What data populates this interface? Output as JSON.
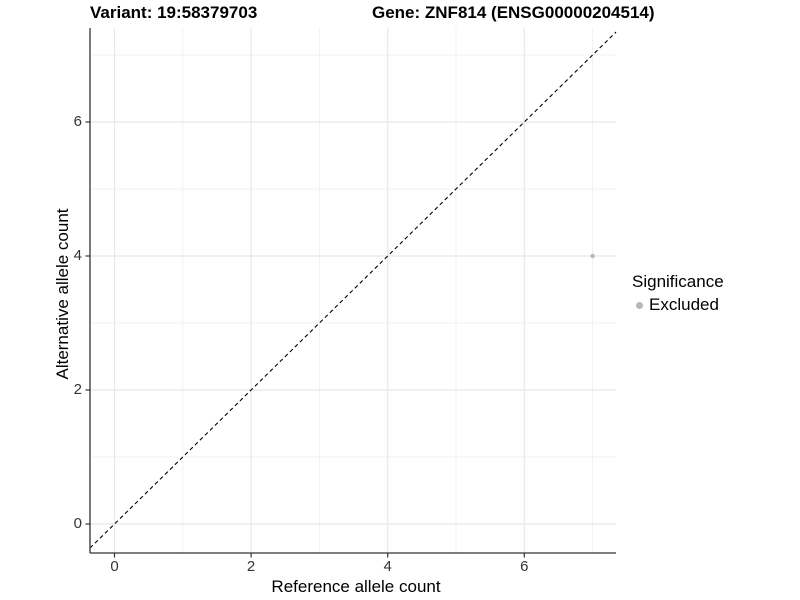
{
  "chart_data": {
    "type": "scatter",
    "title_left": "Variant: 19:58379703",
    "title_right": "Gene: ZNF814 (ENSG00000204514)",
    "xlabel": "Reference allele count",
    "ylabel": "Alternative allele count",
    "xlim": [
      -0.35,
      7.35
    ],
    "ylim": [
      -0.35,
      7.35
    ],
    "xticks": [
      0,
      2,
      4,
      6
    ],
    "yticks": [
      0,
      2,
      4,
      6
    ],
    "minor_gridlines_x": [
      1,
      3,
      5,
      7
    ],
    "minor_gridlines_y": [
      1,
      3,
      5,
      7
    ],
    "grid": true,
    "points": [
      {
        "x": 7,
        "y": 4,
        "series": "Excluded",
        "color": "#b8b8b8"
      }
    ],
    "reference_line": {
      "style": "dashed",
      "slope": 1,
      "intercept": 0,
      "color": "#000000"
    },
    "legend": {
      "position": "right",
      "title": "Significance",
      "entries": [
        {
          "label": "Excluded",
          "color": "#b8b8b8"
        }
      ]
    }
  },
  "colors": {
    "background": "#ffffff",
    "grid_major": "#e8e8e8",
    "grid_minor": "#f2f2f2",
    "axis_line": "#333333",
    "tick_text": "#333333",
    "point": "#b8b8b8"
  }
}
